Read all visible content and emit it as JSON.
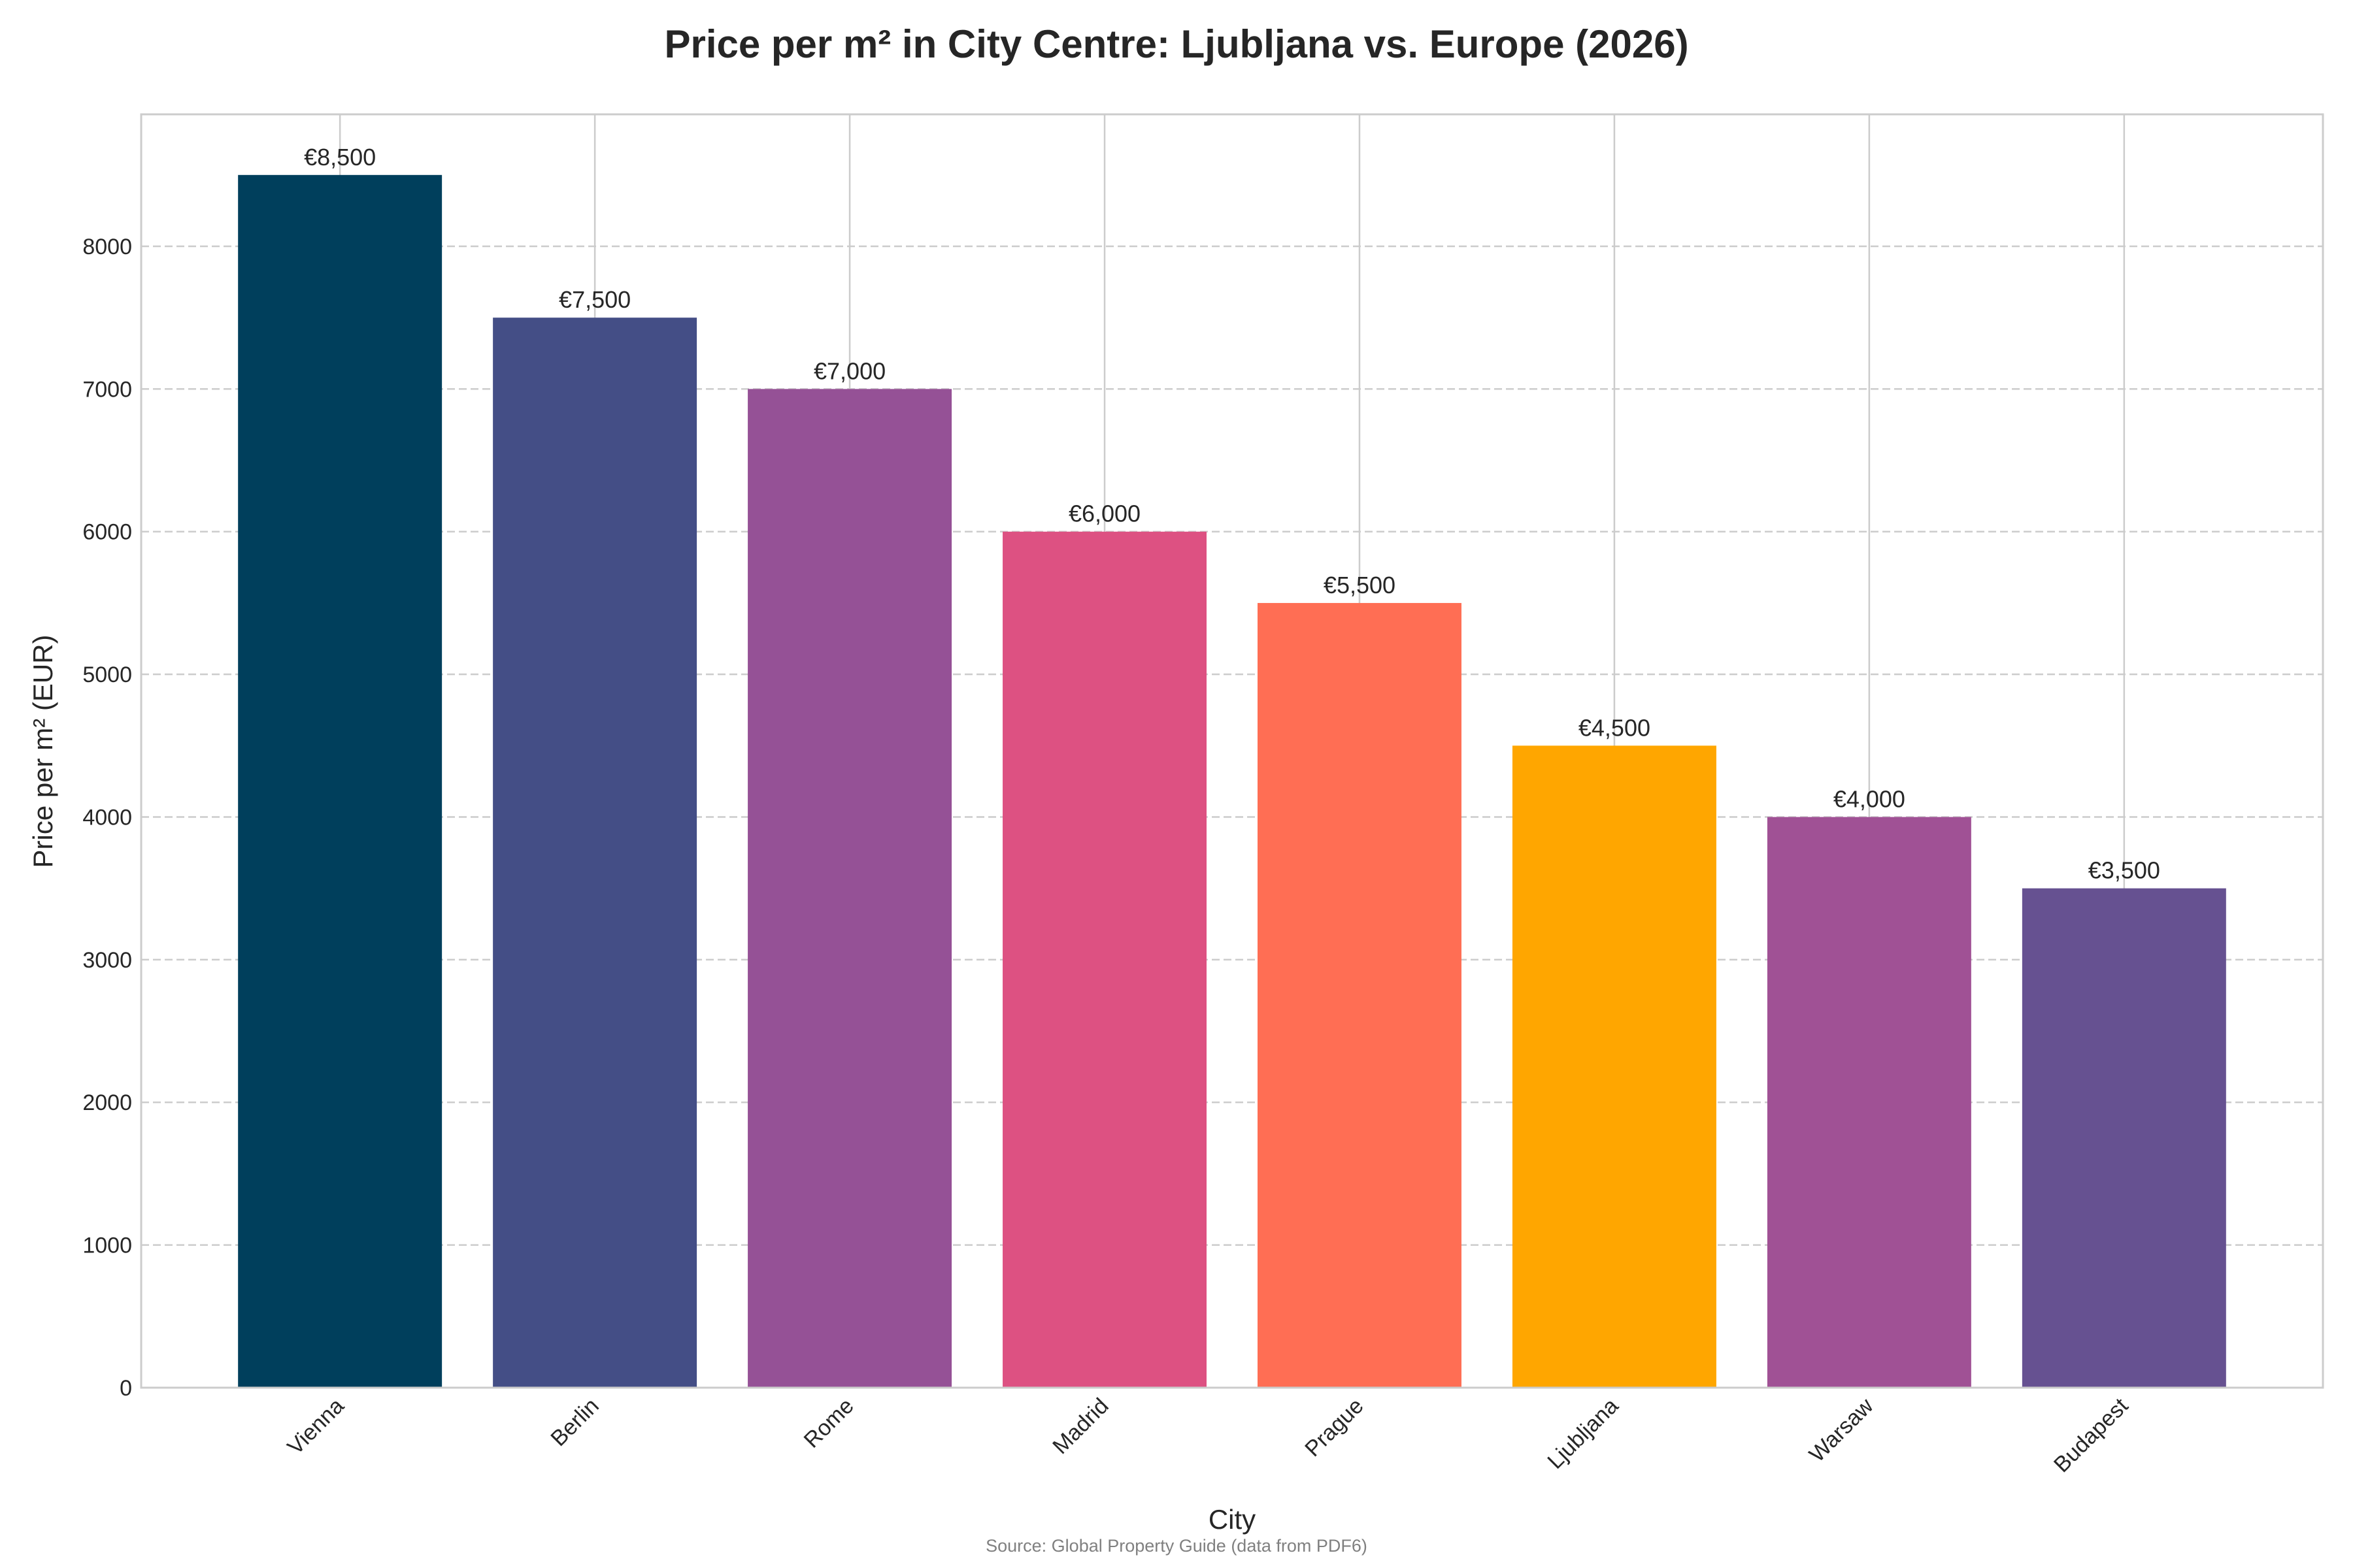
{
  "chart_data": {
    "type": "bar",
    "title": "Price per m² in City Centre: Ljubljana vs. Europe (2026)",
    "xlabel": "City",
    "ylabel": "Price per m² (EUR)",
    "source": "Source: Global Property Guide (data from PDF6)",
    "categories": [
      "Vienna",
      "Berlin",
      "Rome",
      "Madrid",
      "Prague",
      "Ljubljana",
      "Warsaw",
      "Budapest"
    ],
    "values": [
      8500,
      7500,
      7000,
      6000,
      5500,
      4500,
      4000,
      3500
    ],
    "data_labels": [
      "€8,500",
      "€7,500",
      "€7,000",
      "€6,000",
      "€5,500",
      "€4,500",
      "€4,000",
      "€3,500"
    ],
    "colors": [
      "#003f5c",
      "#444e86",
      "#955196",
      "#dd5182",
      "#ff6e54",
      "#ffa600",
      "#a05195",
      "#665191"
    ],
    "yticks": [
      0,
      1000,
      2000,
      3000,
      4000,
      5000,
      6000,
      7000,
      8000
    ],
    "ylim": [
      0,
      8925
    ],
    "grid": true,
    "legend": "none"
  }
}
